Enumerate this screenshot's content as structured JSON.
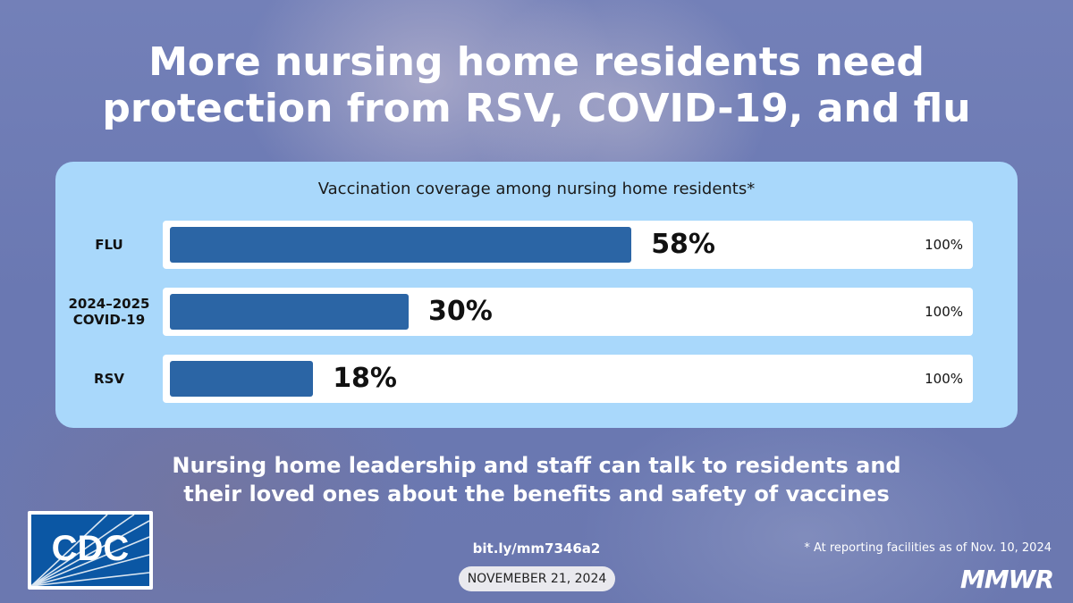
{
  "title_line1": "More nursing home residents need",
  "title_line2": "protection from RSV, COVID-19, and flu",
  "chart_data": {
    "type": "bar",
    "orientation": "horizontal",
    "title": "Vaccination coverage among nursing home residents*",
    "categories": [
      "FLU",
      "2024–2025 COVID-19",
      "RSV"
    ],
    "category_lines": [
      [
        "FLU"
      ],
      [
        "2024–2025",
        "COVID-19"
      ],
      [
        "RSV"
      ]
    ],
    "values": [
      58,
      30,
      18
    ],
    "value_labels": [
      "58%",
      "30%",
      "18%"
    ],
    "max_label": "100%",
    "xlim": [
      0,
      100
    ],
    "bar_color": "#2b65a5"
  },
  "subtitle_line1": "Nursing home leadership and staff can talk to residents and",
  "subtitle_line2": "their loved ones about the benefits and safety of vaccines",
  "logo_text": "CDC",
  "link": "bit.ly/mm7346a2",
  "date": "NOVEMEBER 21, 2024",
  "footnote": "* At reporting facilities as of Nov. 10, 2024",
  "brand": "MMWR"
}
